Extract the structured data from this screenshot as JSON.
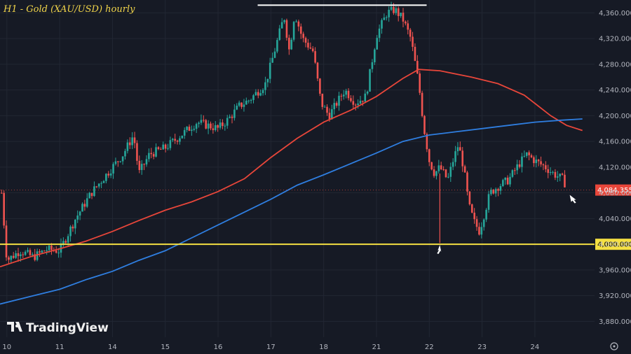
{
  "chart_data": {
    "type": "candlestick",
    "title": "H1 - Gold (XAU/USD) hourly",
    "brand": "TradingView",
    "ylim": [
      3850,
      4380
    ],
    "y_ticks": [
      "3,880.000",
      "3,920.000",
      "3,960.000",
      "4,000.000",
      "4,040.000",
      "4,080.000",
      "4,120.000",
      "4,160.000",
      "4,200.000",
      "4,240.000",
      "4,280.000",
      "4,320.000",
      "4,360.000"
    ],
    "x_ticks": [
      {
        "label": "10",
        "t": 0
      },
      {
        "label": "11",
        "t": 1
      },
      {
        "label": "14",
        "t": 2
      },
      {
        "label": "15",
        "t": 3
      },
      {
        "label": "16",
        "t": 4
      },
      {
        "label": "17",
        "t": 5
      },
      {
        "label": "18",
        "t": 6
      },
      {
        "label": "21",
        "t": 7
      },
      {
        "label": "22",
        "t": 8
      },
      {
        "label": "23",
        "t": 9
      },
      {
        "label": "24",
        "t": 10
      }
    ],
    "t_range": [
      -0.13,
      11.13
    ],
    "price_path": [
      [
        -0.1,
        4080
      ],
      [
        0.0,
        3975
      ],
      [
        0.25,
        3990
      ],
      [
        0.5,
        3980
      ],
      [
        0.75,
        3992
      ],
      [
        1.0,
        3990
      ],
      [
        1.3,
        4040
      ],
      [
        1.6,
        4080
      ],
      [
        1.9,
        4110
      ],
      [
        2.2,
        4140
      ],
      [
        2.4,
        4170
      ],
      [
        2.5,
        4110
      ],
      [
        2.7,
        4140
      ],
      [
        3.0,
        4150
      ],
      [
        3.3,
        4170
      ],
      [
        3.6,
        4190
      ],
      [
        4.0,
        4180
      ],
      [
        4.2,
        4195
      ],
      [
        4.4,
        4215
      ],
      [
        4.6,
        4225
      ],
      [
        4.9,
        4250
      ],
      [
        5.1,
        4310
      ],
      [
        5.25,
        4355
      ],
      [
        5.35,
        4300
      ],
      [
        5.45,
        4360
      ],
      [
        5.6,
        4320
      ],
      [
        5.8,
        4300
      ],
      [
        5.95,
        4220
      ],
      [
        6.1,
        4200
      ],
      [
        6.4,
        4240
      ],
      [
        6.6,
        4220
      ],
      [
        6.8,
        4230
      ],
      [
        7.0,
        4325
      ],
      [
        7.2,
        4360
      ],
      [
        7.35,
        4365
      ],
      [
        7.5,
        4350
      ],
      [
        7.65,
        4320
      ],
      [
        7.8,
        4250
      ],
      [
        7.9,
        4180
      ],
      [
        8.0,
        4130
      ],
      [
        8.1,
        4110
      ],
      [
        8.2,
        4120
      ],
      [
        8.35,
        4100
      ],
      [
        8.45,
        4130
      ],
      [
        8.55,
        4155
      ],
      [
        8.65,
        4120
      ],
      [
        8.75,
        4060
      ],
      [
        8.85,
        4035
      ],
      [
        8.95,
        4020
      ],
      [
        9.05,
        4050
      ],
      [
        9.15,
        4080
      ],
      [
        9.3,
        4090
      ],
      [
        9.5,
        4100
      ],
      [
        9.7,
        4125
      ],
      [
        9.85,
        4140
      ],
      [
        10.0,
        4130
      ],
      [
        10.2,
        4120
      ],
      [
        10.35,
        4110
      ],
      [
        10.55,
        4100
      ],
      [
        10.6,
        4084.355
      ]
    ],
    "series": [
      {
        "type": "line",
        "color": "#e8463a",
        "points": [
          [
            -0.13,
            3965
          ],
          [
            0.5,
            3982
          ],
          [
            1.0,
            3993
          ],
          [
            1.5,
            4005
          ],
          [
            2.0,
            4020
          ],
          [
            2.5,
            4037
          ],
          [
            3.0,
            4053
          ],
          [
            3.5,
            4066
          ],
          [
            4.0,
            4082
          ],
          [
            4.5,
            4102
          ],
          [
            5.0,
            4135
          ],
          [
            5.5,
            4165
          ],
          [
            6.0,
            4190
          ],
          [
            6.5,
            4208
          ],
          [
            7.0,
            4230
          ],
          [
            7.5,
            4258
          ],
          [
            7.8,
            4272
          ],
          [
            8.2,
            4270
          ],
          [
            8.8,
            4260
          ],
          [
            9.3,
            4250
          ],
          [
            9.8,
            4232
          ],
          [
            10.3,
            4200
          ],
          [
            10.6,
            4185
          ],
          [
            10.9,
            4177
          ]
        ]
      },
      {
        "type": "line",
        "color": "#2f7ee0",
        "points": [
          [
            -0.13,
            3907
          ],
          [
            0.5,
            3920
          ],
          [
            1.0,
            3930
          ],
          [
            1.5,
            3945
          ],
          [
            2.0,
            3958
          ],
          [
            2.5,
            3975
          ],
          [
            3.0,
            3990
          ],
          [
            3.5,
            4010
          ],
          [
            4.0,
            4030
          ],
          [
            4.5,
            4050
          ],
          [
            5.0,
            4070
          ],
          [
            5.5,
            4092
          ],
          [
            6.0,
            4108
          ],
          [
            6.5,
            4125
          ],
          [
            7.0,
            4142
          ],
          [
            7.5,
            4160
          ],
          [
            8.0,
            4170
          ],
          [
            8.5,
            4175
          ],
          [
            9.0,
            4180
          ],
          [
            9.5,
            4185
          ],
          [
            10.0,
            4190
          ],
          [
            10.5,
            4193
          ],
          [
            10.9,
            4195
          ]
        ]
      }
    ],
    "horizontal_levels": [
      {
        "name": "support",
        "value": 4000,
        "color": "#f5e042",
        "label": "4,000.000"
      },
      {
        "name": "current-price",
        "value": 4084.355,
        "color": "#e8463a",
        "label": "4,084.355"
      }
    ],
    "top_resistance_segment": {
      "t_start": 4.75,
      "t_end": 7.95,
      "value": 4372,
      "color": "#ffffff"
    },
    "arrows": [
      {
        "name": "low-arrow",
        "t": 8.2,
        "value": 4000
      },
      {
        "name": "end-arrow",
        "t": 10.7,
        "value": 4080
      }
    ]
  }
}
